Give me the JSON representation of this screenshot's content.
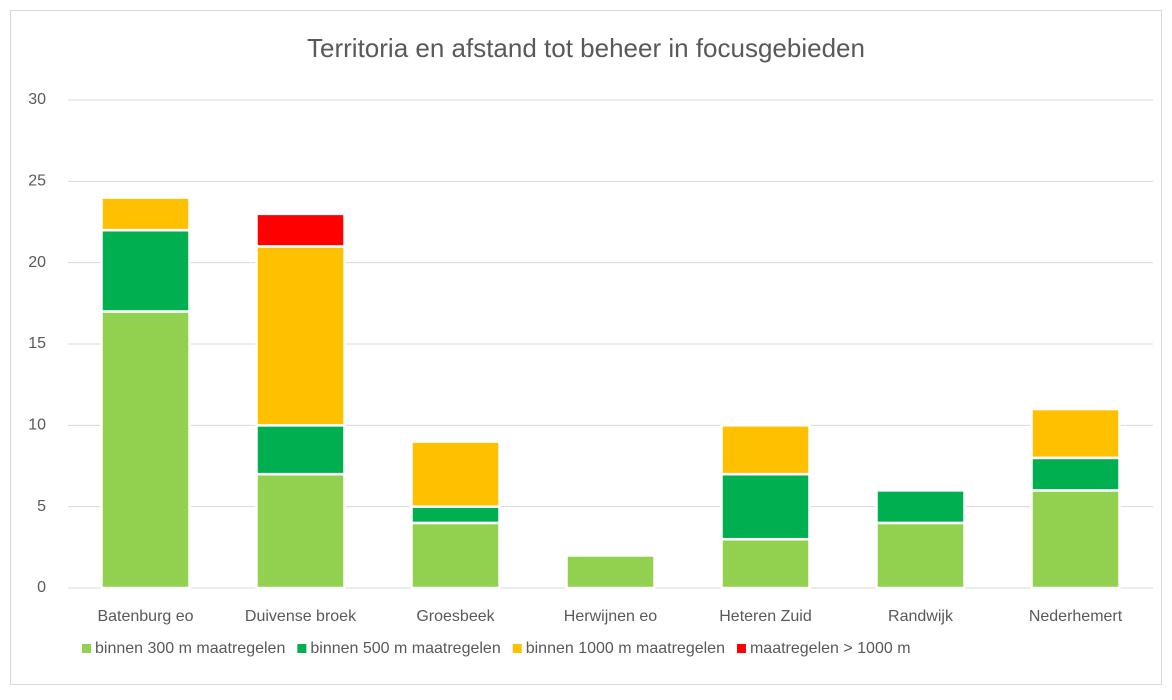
{
  "chart_data": {
    "type": "stacked_bar",
    "title": "Territoria en afstand tot beheer in focusgebieden",
    "categories": [
      "Batenburg eo",
      "Duivense broek",
      "Groesbeek",
      "Herwijnen eo",
      "Heteren Zuid",
      "Randwijk",
      "Nederhemert"
    ],
    "series": [
      {
        "name": "binnen 300 m maatregelen",
        "color": "#92d050",
        "values": [
          17,
          7,
          4,
          2,
          3,
          4,
          6
        ]
      },
      {
        "name": "binnen 500 m maatregelen",
        "color": "#00b050",
        "values": [
          5,
          3,
          1,
          0,
          4,
          2,
          2
        ]
      },
      {
        "name": "binnen 1000 m maatregelen",
        "color": "#ffc000",
        "values": [
          2,
          11,
          4,
          0,
          3,
          0,
          3
        ]
      },
      {
        "name": "maatregelen > 1000 m",
        "color": "#ff0000",
        "values": [
          0,
          2,
          0,
          0,
          0,
          0,
          0
        ]
      }
    ],
    "ylim": [
      0,
      30
    ],
    "yticks": [
      0,
      5,
      10,
      15,
      20,
      25,
      30
    ],
    "grid": true,
    "legend": "bottom"
  }
}
